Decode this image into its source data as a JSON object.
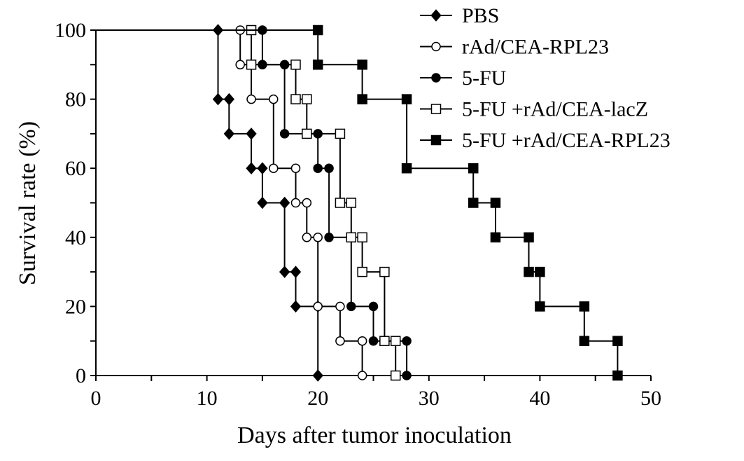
{
  "chart_data": {
    "type": "line",
    "step": true,
    "xlabel": "Days after tumor inoculation",
    "ylabel": "Survival rate (%)",
    "xlim": [
      0,
      50
    ],
    "ylim": [
      0,
      100
    ],
    "xticks": [
      0,
      10,
      20,
      30,
      40,
      50
    ],
    "yticks": [
      0,
      20,
      40,
      60,
      80,
      100
    ],
    "grid": false,
    "legend_position": "top-right",
    "series": [
      {
        "name": "PBS",
        "marker": "diamond-filled",
        "points": [
          [
            0,
            100
          ],
          [
            11,
            100
          ],
          [
            11,
            80
          ],
          [
            12,
            80
          ],
          [
            12,
            70
          ],
          [
            14,
            70
          ],
          [
            14,
            60
          ],
          [
            15,
            60
          ],
          [
            15,
            50
          ],
          [
            17,
            50
          ],
          [
            17,
            30
          ],
          [
            18,
            30
          ],
          [
            18,
            20
          ],
          [
            20,
            20
          ],
          [
            20,
            0
          ]
        ]
      },
      {
        "name": "rAd/CEA-RPL23",
        "marker": "circle-open",
        "points": [
          [
            0,
            100
          ],
          [
            13,
            100
          ],
          [
            13,
            90
          ],
          [
            14,
            90
          ],
          [
            14,
            80
          ],
          [
            16,
            80
          ],
          [
            16,
            60
          ],
          [
            18,
            60
          ],
          [
            18,
            50
          ],
          [
            19,
            50
          ],
          [
            19,
            40
          ],
          [
            20,
            40
          ],
          [
            20,
            20
          ],
          [
            22,
            20
          ],
          [
            22,
            10
          ],
          [
            24,
            10
          ],
          [
            24,
            0
          ]
        ]
      },
      {
        "name": "5-FU",
        "marker": "circle-filled",
        "points": [
          [
            0,
            100
          ],
          [
            15,
            100
          ],
          [
            15,
            90
          ],
          [
            17,
            90
          ],
          [
            17,
            70
          ],
          [
            20,
            70
          ],
          [
            20,
            60
          ],
          [
            21,
            60
          ],
          [
            21,
            40
          ],
          [
            23,
            40
          ],
          [
            23,
            20
          ],
          [
            25,
            20
          ],
          [
            25,
            10
          ],
          [
            28,
            10
          ],
          [
            28,
            0
          ]
        ]
      },
      {
        "name": "5-FU +rAd/CEA-lacZ",
        "marker": "square-open",
        "points": [
          [
            0,
            100
          ],
          [
            14,
            100
          ],
          [
            14,
            90
          ],
          [
            18,
            90
          ],
          [
            18,
            80
          ],
          [
            19,
            80
          ],
          [
            19,
            70
          ],
          [
            22,
            70
          ],
          [
            22,
            50
          ],
          [
            23,
            50
          ],
          [
            23,
            40
          ],
          [
            24,
            40
          ],
          [
            24,
            30
          ],
          [
            26,
            30
          ],
          [
            26,
            10
          ],
          [
            27,
            10
          ],
          [
            27,
            0
          ]
        ]
      },
      {
        "name": "5-FU +rAd/CEA-RPL23",
        "marker": "square-filled",
        "points": [
          [
            0,
            100
          ],
          [
            20,
            100
          ],
          [
            20,
            90
          ],
          [
            24,
            90
          ],
          [
            24,
            80
          ],
          [
            28,
            80
          ],
          [
            28,
            60
          ],
          [
            34,
            60
          ],
          [
            34,
            50
          ],
          [
            36,
            50
          ],
          [
            36,
            40
          ],
          [
            39,
            40
          ],
          [
            39,
            30
          ],
          [
            40,
            30
          ],
          [
            40,
            20
          ],
          [
            44,
            20
          ],
          [
            44,
            10
          ],
          [
            47,
            10
          ],
          [
            47,
            0
          ]
        ]
      }
    ]
  }
}
